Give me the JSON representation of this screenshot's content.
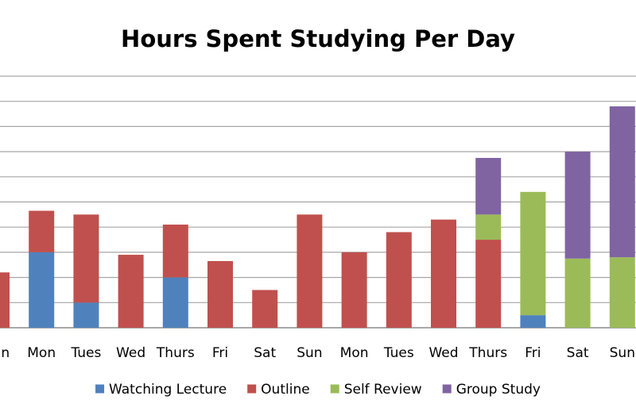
{
  "chart_data": {
    "type": "bar",
    "stacked": true,
    "title": "Hours Spent Studying Per Day",
    "xlabel": "",
    "ylabel": "",
    "categories": [
      "Sun",
      "Mon",
      "Tues",
      "Wed",
      "Thurs",
      "Fri",
      "Sat",
      "Sun",
      "Mon",
      "Tues",
      "Wed",
      "Thurs",
      "Fri",
      "Sat",
      "Sun"
    ],
    "ylim": [
      0,
      10
    ],
    "grid": true,
    "legend_position": "bottom",
    "series": [
      {
        "name": "Watching Lecture",
        "color": "#4f81bd",
        "values": [
          0,
          3,
          1,
          0,
          2,
          0,
          0,
          0,
          0,
          0,
          0,
          0,
          0.5,
          0,
          0
        ]
      },
      {
        "name": "Outline",
        "color": "#c0504d",
        "values": [
          2.2,
          1.65,
          3.5,
          2.9,
          2.1,
          2.65,
          1.5,
          4.5,
          3,
          3.8,
          4.3,
          3.5,
          0,
          0,
          0
        ]
      },
      {
        "name": "Self Review",
        "color": "#9bbb59",
        "values": [
          0,
          0,
          0,
          0,
          0,
          0,
          0,
          0,
          0,
          0,
          0,
          1,
          4.9,
          2.75,
          2.8
        ]
      },
      {
        "name": "Group Study",
        "color": "#8064a2",
        "values": [
          0,
          0,
          0,
          0,
          0,
          0,
          0,
          0,
          0,
          0,
          0,
          2.25,
          0,
          4.25,
          6
        ]
      }
    ]
  }
}
